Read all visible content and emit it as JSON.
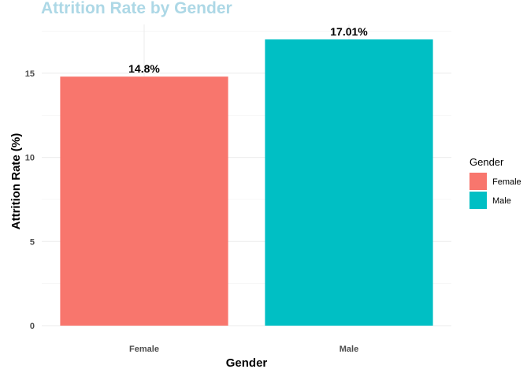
{
  "chart_data": {
    "type": "bar",
    "title": "Attrition Rate by Gender",
    "xlabel": "Gender",
    "ylabel": "Attrition Rate (%)",
    "categories": [
      "Female",
      "Male"
    ],
    "values": [
      14.8,
      17.01
    ],
    "data_labels": [
      "14.8%",
      "17.01%"
    ],
    "colors": [
      "#F8766D",
      "#00BFC4"
    ],
    "title_color": "#ADD8E6",
    "ylim": [
      0,
      17.9
    ],
    "y_ticks": [
      0,
      5,
      10,
      15
    ],
    "y_tick_labels": [
      "0",
      "5",
      "10",
      "15"
    ],
    "grid": true,
    "legend": {
      "title": "Gender",
      "position": "right",
      "entries": [
        "Female",
        "Male"
      ]
    }
  }
}
